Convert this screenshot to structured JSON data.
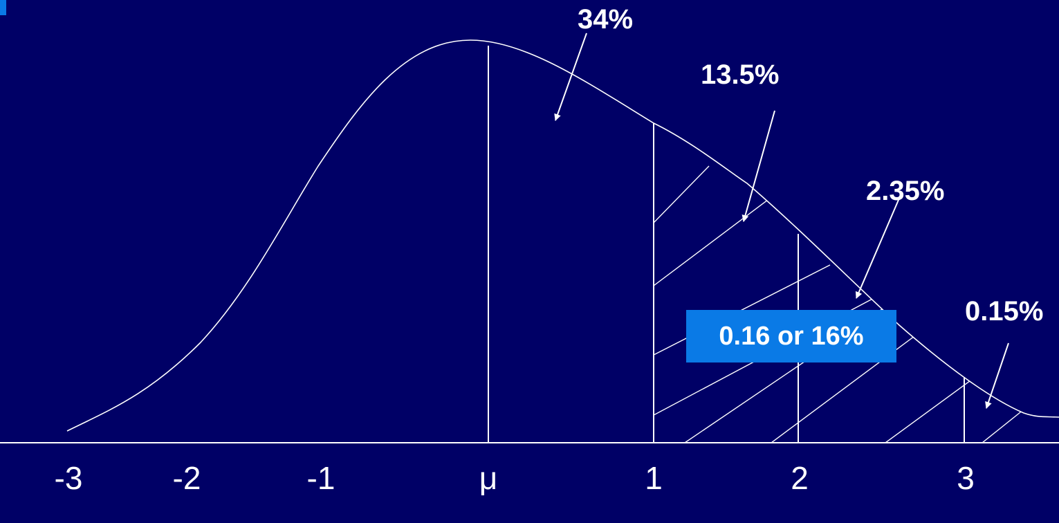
{
  "areas": [
    {
      "label": "34%"
    },
    {
      "label": "13.5%"
    },
    {
      "label": "2.35%"
    },
    {
      "label": "0.15%"
    }
  ],
  "axis": {
    "ticks": [
      "-3",
      "-2",
      "-1",
      "μ",
      "1",
      "2",
      "3"
    ]
  },
  "callout": {
    "text": "0.16 or 16%",
    "color": "#0a7ae6"
  },
  "colors": {
    "background": "#000066",
    "lines": "#ffffff"
  }
}
